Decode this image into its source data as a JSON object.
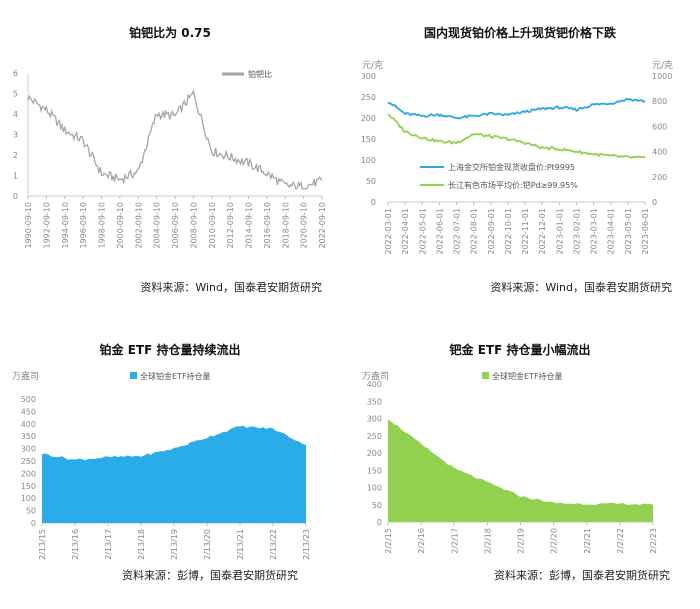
{
  "chart_data": [
    {
      "type": "line",
      "title": "铂钯比为 0.75",
      "source": "资料来源：Wind，国泰君安期货研究",
      "x": [
        "1990-09-10",
        "1992-09-10",
        "1994-09-10",
        "1996-09-10",
        "1998-09-10",
        "2000-09-10",
        "2002-09-10",
        "2004-09-10",
        "2006-09-10",
        "2008-09-10",
        "2010-09-10",
        "2012-09-10",
        "2014-09-10",
        "2016-09-10",
        "2018-09-10",
        "2020-09-10",
        "2022-09-10"
      ],
      "series": [
        {
          "name": "铂钯比",
          "color": "#a6a6a6",
          "values": [
            4.8,
            4.2,
            3.2,
            2.7,
            1.1,
            0.8,
            1.2,
            4.0,
            3.9,
            5.0,
            2.2,
            1.9,
            1.6,
            1.1,
            0.5,
            0.45,
            0.75
          ]
        }
      ],
      "yticks": [
        "0",
        "1",
        "2",
        "3",
        "4",
        "5",
        "6"
      ],
      "ylim": [
        0,
        6
      ],
      "legend_position": "top-right"
    },
    {
      "type": "line",
      "title": "国内现货铂价格上升现货钯价格下跌",
      "source": "资料来源：Wind，国泰君安期货研究",
      "left_unit": "元/克",
      "right_unit": "元/克",
      "x": [
        "2022-03-01",
        "2022-04-01",
        "2022-05-01",
        "2022-06-01",
        "2022-07-01",
        "2022-08-01",
        "2022-09-01",
        "2022-10-01",
        "2022-11-01",
        "2022-12-01",
        "2023-01-01",
        "2023-02-01",
        "2023-03-01",
        "2023-04-01",
        "2023-05-01",
        "2023-06-01"
      ],
      "series": [
        {
          "name": "上海金交所铂金现货收盘价:Pt9995",
          "axis": "left",
          "color": "#2ea7e0",
          "values": [
            240,
            210,
            205,
            208,
            200,
            205,
            210,
            207,
            215,
            222,
            225,
            220,
            232,
            235,
            245,
            240
          ]
        },
        {
          "name": "长江有色市场平均价:钯Pd≥99.95%",
          "axis": "right",
          "color": "#92d050",
          "values": [
            700,
            560,
            510,
            480,
            470,
            540,
            520,
            500,
            470,
            430,
            420,
            400,
            380,
            365,
            355,
            350
          ]
        }
      ],
      "yticks_left": [
        "0",
        "50",
        "100",
        "150",
        "200",
        "250",
        "300"
      ],
      "yticks_right": [
        "0",
        "200",
        "400",
        "600",
        "800",
        "1000"
      ],
      "ylim_left": [
        0,
        300
      ],
      "ylim_right": [
        0,
        1000
      ],
      "legend_position": "lower-left"
    },
    {
      "type": "area",
      "title": "铂金 ETF 持仓量持续流出",
      "source": "资料来源：彭博，国泰君安期货研究",
      "unit": "万盎司",
      "x": [
        "2/13/15",
        "2/13/16",
        "2/13/17",
        "2/13/18",
        "2/13/19",
        "2/13/20",
        "2/13/21",
        "2/13/22",
        "2/13/23"
      ],
      "series": [
        {
          "name": "全球铂金ETF持仓量",
          "color": "#2aace8",
          "values": [
            280,
            255,
            265,
            270,
            300,
            345,
            390,
            380,
            315
          ]
        }
      ],
      "yticks": [
        "0",
        "50",
        "100",
        "150",
        "200",
        "250",
        "300",
        "350",
        "400",
        "450",
        "500"
      ],
      "ylim": [
        0,
        500
      ],
      "legend_position": "top-center"
    },
    {
      "type": "area",
      "title": "钯金 ETF 持仓量小幅流出",
      "source": "资料来源：彭博，国泰君安期货研究",
      "unit": "万盎司",
      "x": [
        "2/2/15",
        "2/2/16",
        "2/2/17",
        "2/2/18",
        "2/2/19",
        "2/2/20",
        "2/2/21",
        "2/2/22",
        "2/2/23"
      ],
      "series": [
        {
          "name": "全球钯金ETF持仓量",
          "color": "#92d050",
          "values": [
            300,
            225,
            155,
            115,
            75,
            55,
            52,
            53,
            50
          ]
        }
      ],
      "yticks": [
        "0",
        "50",
        "100",
        "150",
        "200",
        "250",
        "300",
        "350",
        "400"
      ],
      "ylim": [
        0,
        400
      ],
      "legend_position": "top-center"
    }
  ]
}
